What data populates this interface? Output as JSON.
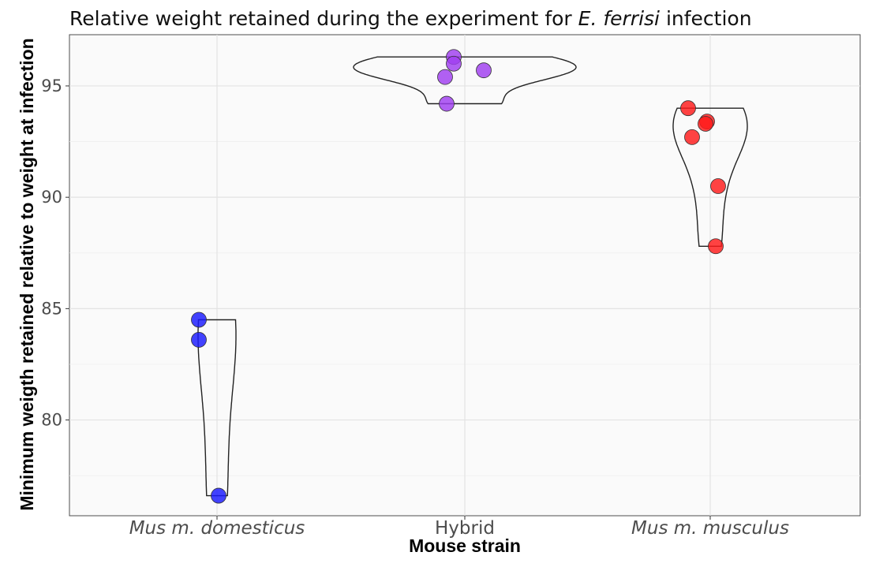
{
  "chart_data": {
    "type": "violin",
    "title_parts": [
      {
        "text": "Relative weight retained during the experiment for ",
        "italic": false
      },
      {
        "text": "E. ferrisi",
        "italic": true
      },
      {
        "text": " infection",
        "italic": false
      }
    ],
    "xlabel": "Mouse strain",
    "ylabel": "Minimum weigth retained relative to weight at infection",
    "categories": [
      {
        "label": "Mus m. domesticus",
        "italic": true,
        "color": "#1a1aff",
        "values": [
          84.5,
          83.6,
          76.6
        ]
      },
      {
        "label": "Hybrid",
        "italic": false,
        "color": "#a03ef0",
        "values": [
          96.3,
          96.0,
          95.7,
          95.4,
          94.2
        ]
      },
      {
        "label": "Mus m. musculus",
        "italic": true,
        "color": "#ff1a1a",
        "values": [
          94.0,
          93.4,
          93.3,
          92.7,
          90.5,
          87.8
        ]
      }
    ],
    "yticks": [
      80,
      85,
      90,
      95
    ],
    "ylim": [
      75.7,
      97.3
    ],
    "grid": true,
    "background": "#fafafa"
  }
}
